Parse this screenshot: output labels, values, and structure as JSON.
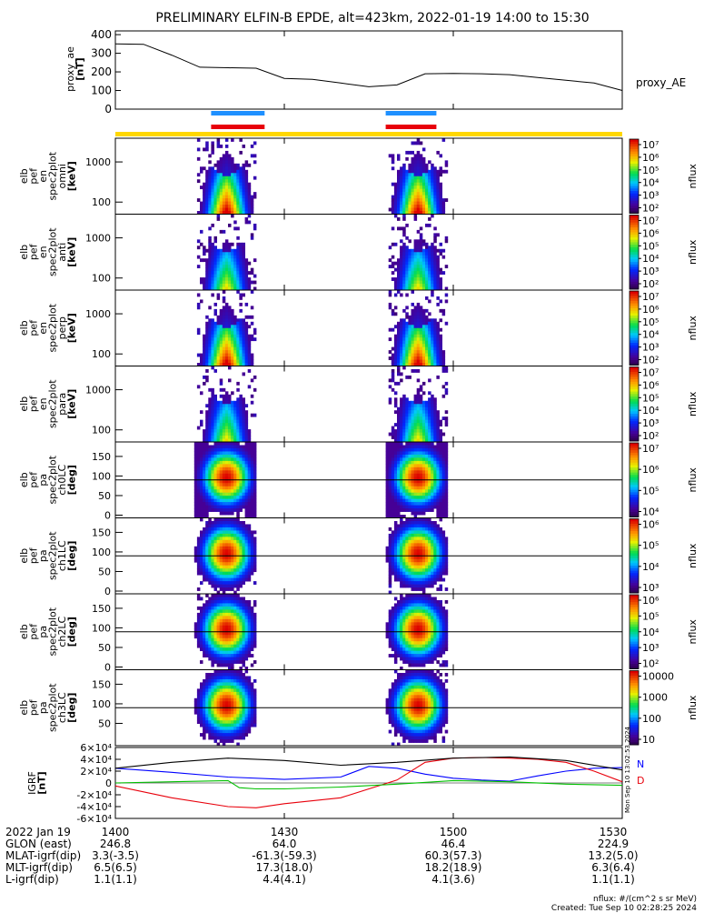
{
  "title": "PRELIMINARY ELFIN-B EPDE, alt=423km, 2022-01-19 14:00 to 15:30",
  "chart_data": {
    "type": "heatmap",
    "time_range": [
      "14:00",
      "15:30"
    ],
    "x_ticks": [
      "1400",
      "1430",
      "1500",
      "1530"
    ],
    "x_tick_minutes": [
      0,
      30,
      60,
      90
    ],
    "proxy_ae": {
      "type": "line",
      "ylabel": "proxy_ae\n[nT]",
      "legend": "proxy_AE",
      "ylim": [
        0,
        420
      ],
      "yticks": [
        0,
        100,
        200,
        300,
        400
      ],
      "minutes": [
        0,
        5,
        10,
        15,
        20,
        25,
        30,
        35,
        40,
        45,
        50,
        55,
        60,
        65,
        70,
        75,
        80,
        85,
        90
      ],
      "values": [
        350,
        348,
        290,
        225,
        222,
        220,
        165,
        160,
        140,
        120,
        130,
        190,
        192,
        190,
        185,
        170,
        155,
        140,
        100
      ]
    },
    "science_zone_bars": [
      {
        "color": "#1E90FF",
        "start_min": 17.0,
        "end_min": 26.5
      },
      {
        "color": "#1E90FF",
        "start_min": 48.0,
        "end_min": 57.0
      },
      {
        "color": "#E8000B",
        "start_min": 17.0,
        "end_min": 26.5
      },
      {
        "color": "#E8000B",
        "start_min": 48.0,
        "end_min": 57.0
      }
    ],
    "flux_panels": [
      {
        "ylabel": [
          "elb",
          "pef",
          "en",
          "spec2plot",
          "omni",
          "[keV]"
        ],
        "kind": "energy",
        "yticks": [
          100,
          1000
        ],
        "cb_ticks": [
          "10⁷",
          "10⁶",
          "10⁵",
          "10⁴",
          "10³",
          "10²"
        ],
        "cb_label": "nflux"
      },
      {
        "ylabel": [
          "elb",
          "pef",
          "en",
          "spec2plot",
          "anti",
          "[keV]"
        ],
        "kind": "energy",
        "yticks": [
          100,
          1000
        ],
        "cb_ticks": [
          "10⁷",
          "10⁶",
          "10⁵",
          "10⁴",
          "10³",
          "10²"
        ],
        "cb_label": "nflux"
      },
      {
        "ylabel": [
          "elb",
          "pef",
          "en",
          "spec2plot",
          "perp",
          "[keV]"
        ],
        "kind": "energy",
        "yticks": [
          100,
          1000
        ],
        "cb_ticks": [
          "10⁷",
          "10⁶",
          "10⁵",
          "10⁴",
          "10³",
          "10²"
        ],
        "cb_label": "nflux"
      },
      {
        "ylabel": [
          "elb",
          "pef",
          "en",
          "spec2plot",
          "para",
          "[keV]"
        ],
        "kind": "energy",
        "yticks": [
          100,
          1000
        ],
        "cb_ticks": [
          "10⁷",
          "10⁶",
          "10⁵",
          "10⁴",
          "10³",
          "10²"
        ],
        "cb_label": "nflux"
      },
      {
        "ylabel": [
          "elb",
          "pef",
          "pa",
          "spec2plot",
          "ch0LC",
          "[deg]"
        ],
        "kind": "pitch",
        "yticks": [
          0,
          50,
          100,
          150
        ],
        "cb_ticks": [
          "10⁷",
          "10⁶",
          "10⁵",
          "10⁴"
        ],
        "cb_label": "nflux"
      },
      {
        "ylabel": [
          "elb",
          "pef",
          "pa",
          "spec2plot",
          "ch1LC",
          "[deg]"
        ],
        "kind": "pitch",
        "yticks": [
          0,
          50,
          100,
          150
        ],
        "cb_ticks": [
          "10⁶",
          "10⁵",
          "10⁴",
          "10³"
        ],
        "cb_label": "nflux"
      },
      {
        "ylabel": [
          "elb",
          "pef",
          "pa",
          "spec2plot",
          "ch2LC",
          "[deg]"
        ],
        "kind": "pitch",
        "yticks": [
          0,
          50,
          100,
          150
        ],
        "cb_ticks": [
          "10⁶",
          "10⁵",
          "10⁴",
          "10³",
          "10²"
        ],
        "cb_label": "nflux"
      },
      {
        "ylabel": [
          "elb",
          "pef",
          "pa",
          "spec2plot",
          "ch3LC",
          "[deg]"
        ],
        "kind": "pitch",
        "yticks": [
          50,
          100,
          150
        ],
        "cb_ticks": [
          "10000",
          "1000",
          "100",
          "10"
        ],
        "cb_label": "nflux"
      }
    ],
    "igrf": {
      "type": "line",
      "ylabel": "IGRF\n[nT]",
      "ylim": [
        -60000,
        60000
      ],
      "yticks": [
        -60000,
        -40000,
        -20000,
        0,
        20000,
        40000,
        60000
      ],
      "ytick_labels": [
        "-6×10⁴",
        "-4×10⁴",
        "-2×10⁴",
        "0",
        "2×10⁴",
        "4×10⁴",
        "6×10⁴"
      ],
      "side_note": "Mon Sep 10 13:02:53 2024",
      "series": [
        {
          "name": "N",
          "color": "#0000FF",
          "minutes": [
            0,
            10,
            20,
            30,
            40,
            45,
            50,
            55,
            60,
            65,
            70,
            75,
            80,
            85,
            90
          ],
          "values": [
            25000,
            18000,
            10000,
            6000,
            10000,
            28000,
            25000,
            15000,
            8000,
            5000,
            3000,
            12000,
            20000,
            25000,
            26000
          ]
        },
        {
          "name": "D",
          "color": "#E8000B",
          "minutes": [
            0,
            10,
            20,
            25,
            30,
            40,
            50,
            55,
            60,
            65,
            70,
            75,
            80,
            85,
            90
          ],
          "values": [
            -5000,
            -25000,
            -40000,
            -42000,
            -35000,
            -25000,
            5000,
            35000,
            42000,
            43000,
            42000,
            40000,
            35000,
            20000,
            2000
          ]
        },
        {
          "name": "",
          "color": "#000000",
          "minutes": [
            0,
            10,
            20,
            30,
            40,
            50,
            60,
            70,
            80,
            90
          ],
          "values": [
            25000,
            35000,
            42000,
            38000,
            30000,
            35000,
            42000,
            44000,
            38000,
            22000
          ]
        },
        {
          "name": "",
          "color": "#00C000",
          "minutes": [
            0,
            10,
            20,
            22,
            25,
            30,
            40,
            50,
            60,
            70,
            80,
            90
          ],
          "values": [
            0,
            2000,
            4000,
            -8000,
            -10000,
            -10000,
            -7000,
            -2000,
            4000,
            2000,
            -2000,
            -4000
          ]
        }
      ]
    }
  },
  "footer": {
    "rows": [
      {
        "label": "2022 Jan 19",
        "values": [
          "1400",
          "1430",
          "1500",
          "1530"
        ]
      },
      {
        "label": "GLON (east)",
        "values": [
          "246.8",
          "64.0",
          "46.4",
          "224.9"
        ]
      },
      {
        "label": "MLAT-igrf(dip)",
        "values": [
          "3.3(-3.5)",
          "-61.3(-59.3)",
          "60.3(57.3)",
          "13.2(5.0)"
        ]
      },
      {
        "label": "MLT-igrf(dip)",
        "values": [
          "6.5(6.5)",
          "17.3(18.0)",
          "18.2(18.9)",
          "6.3(6.4)"
        ]
      },
      {
        "label": "L-igrf(dip)",
        "values": [
          "1.1(1.1)",
          "4.4(4.1)",
          "4.1(3.6)",
          "1.1(1.1)"
        ]
      }
    ],
    "units": "nflux: #/(cm^2 s sr MeV)",
    "created": "Created: Tue Sep 10 02:28:25 2024"
  }
}
